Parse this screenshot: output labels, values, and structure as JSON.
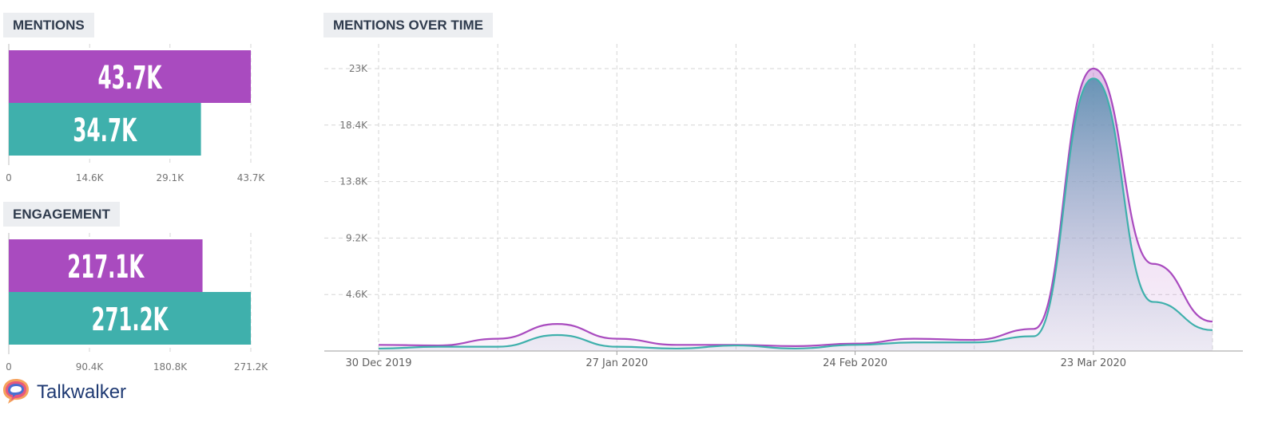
{
  "mentions_panel": {
    "title": "MENTIONS"
  },
  "engagement_panel": {
    "title": "ENGAGEMENT"
  },
  "timeline_panel": {
    "title": "MENTIONS OVER TIME"
  },
  "brand": {
    "name": "Talkwalker",
    "icon": "talkwalker-logo-icon"
  },
  "colors": {
    "purple": "#a94bbf",
    "teal": "#3fb0ac",
    "grid": "#d6d6d6",
    "tick": "#757575"
  },
  "chart_data": [
    {
      "type": "bar",
      "orientation": "horizontal",
      "title": "MENTIONS",
      "series": [
        {
          "color": "#a94bbf",
          "value": 43700,
          "label": "43.7K"
        },
        {
          "color": "#3fb0ac",
          "value": 34700,
          "label": "34.7K"
        }
      ],
      "xlim": [
        0,
        43700
      ],
      "ticks": [
        0,
        14600,
        29100,
        43700
      ],
      "tick_labels": [
        "0",
        "14.6K",
        "29.1K",
        "43.7K"
      ]
    },
    {
      "type": "bar",
      "orientation": "horizontal",
      "title": "ENGAGEMENT",
      "series": [
        {
          "color": "#a94bbf",
          "value": 217100,
          "label": "217.1K"
        },
        {
          "color": "#3fb0ac",
          "value": 271200,
          "label": "271.2K"
        }
      ],
      "xlim": [
        0,
        271200
      ],
      "ticks": [
        0,
        90400,
        180800,
        271200
      ],
      "tick_labels": [
        "0",
        "90.4K",
        "180.8K",
        "271.2K"
      ]
    },
    {
      "type": "area",
      "title": "MENTIONS OVER TIME",
      "x": [
        "2019-12-30",
        "2020-01-06",
        "2020-01-13",
        "2020-01-20",
        "2020-01-27",
        "2020-02-03",
        "2020-02-10",
        "2020-02-17",
        "2020-02-24",
        "2020-03-02",
        "2020-03-09",
        "2020-03-16",
        "2020-03-23",
        "2020-03-30",
        "2020-04-06"
      ],
      "xtick_labels": [
        {
          "x": "2019-12-30",
          "label": "30 Dec 2019"
        },
        {
          "x": "2020-01-27",
          "label": "27 Jan 2020"
        },
        {
          "x": "2020-02-24",
          "label": "24 Feb 2020"
        },
        {
          "x": "2020-03-23",
          "label": "23 Mar 2020"
        }
      ],
      "series": [
        {
          "color": "#a94bbf",
          "values": [
            500,
            450,
            1000,
            2200,
            1000,
            500,
            500,
            400,
            600,
            1000,
            900,
            1800,
            23000,
            7100,
            2400
          ]
        },
        {
          "color": "#3fb0ac",
          "values": [
            200,
            350,
            350,
            1300,
            350,
            200,
            450,
            200,
            500,
            700,
            700,
            1200,
            22200,
            4000,
            1700
          ]
        }
      ],
      "ylim": [
        0,
        23000
      ],
      "yticks": [
        4600,
        9200,
        13800,
        18400,
        23000
      ],
      "ytick_labels": [
        "4.6K",
        "9.2K",
        "13.8K",
        "18.4K",
        "23K"
      ],
      "grid": true
    }
  ]
}
